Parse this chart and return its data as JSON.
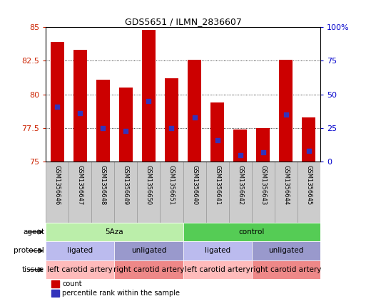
{
  "title": "GDS5651 / ILMN_2836607",
  "samples": [
    "GSM1356646",
    "GSM1356647",
    "GSM1356648",
    "GSM1356649",
    "GSM1356650",
    "GSM1356651",
    "GSM1356640",
    "GSM1356641",
    "GSM1356642",
    "GSM1356643",
    "GSM1356644",
    "GSM1356645"
  ],
  "bar_tops": [
    83.9,
    83.3,
    81.1,
    80.5,
    84.8,
    81.2,
    82.6,
    79.4,
    77.4,
    77.5,
    82.6,
    78.3
  ],
  "bar_base": 75.0,
  "blue_dot_values": [
    79.1,
    78.6,
    77.5,
    77.3,
    79.5,
    77.5,
    78.3,
    76.6,
    75.5,
    75.7,
    78.5,
    75.8
  ],
  "ylim_left": [
    75.0,
    85.0
  ],
  "ylim_right": [
    0,
    100
  ],
  "yticks_left": [
    75.0,
    77.5,
    80.0,
    82.5,
    85.0
  ],
  "ytick_labels_left": [
    "75",
    "77.5",
    "80",
    "82.5",
    "85"
  ],
  "yticks_right": [
    0,
    25,
    50,
    75,
    100
  ],
  "ytick_labels_right": [
    "0",
    "25",
    "50",
    "75",
    "100%"
  ],
  "bar_color": "#cc0000",
  "blue_color": "#3333bb",
  "background_color": "#ffffff",
  "agent_groups": [
    {
      "label": "5Aza",
      "span": [
        0,
        6
      ],
      "color": "#bbeeaa"
    },
    {
      "label": "control",
      "span": [
        6,
        12
      ],
      "color": "#55cc55"
    }
  ],
  "protocol_groups": [
    {
      "label": "ligated",
      "span": [
        0,
        3
      ],
      "color": "#bbbbee"
    },
    {
      "label": "unligated",
      "span": [
        3,
        6
      ],
      "color": "#9999cc"
    },
    {
      "label": "ligated",
      "span": [
        6,
        9
      ],
      "color": "#bbbbee"
    },
    {
      "label": "unligated",
      "span": [
        9,
        12
      ],
      "color": "#9999cc"
    }
  ],
  "tissue_groups": [
    {
      "label": "left carotid artery",
      "span": [
        0,
        3
      ],
      "color": "#ffbbbb"
    },
    {
      "label": "right carotid artery",
      "span": [
        3,
        6
      ],
      "color": "#ee8888"
    },
    {
      "label": "left carotid artery",
      "span": [
        6,
        9
      ],
      "color": "#ffbbbb"
    },
    {
      "label": "right carotid artery",
      "span": [
        9,
        12
      ],
      "color": "#ee8888"
    }
  ],
  "row_labels": [
    "agent",
    "protocol",
    "tissue"
  ],
  "legend_items": [
    {
      "label": "count",
      "color": "#cc0000"
    },
    {
      "label": "percentile rank within the sample",
      "color": "#3333bb"
    }
  ],
  "sample_box_color": "#cccccc",
  "sample_box_edge": "#999999"
}
